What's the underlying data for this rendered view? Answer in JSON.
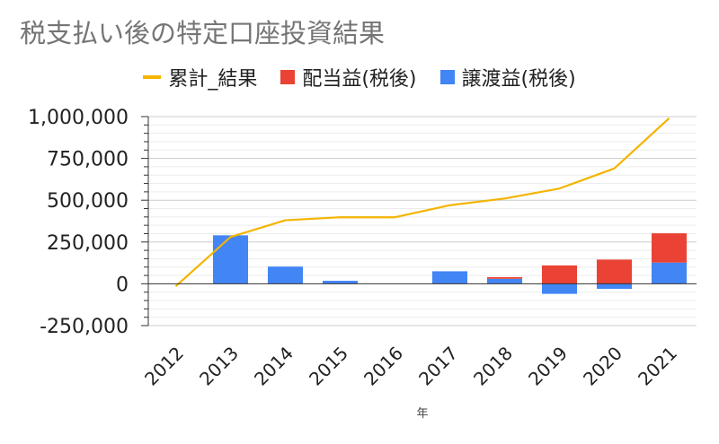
{
  "chart_data": {
    "type": "bar",
    "title": "税支払い後の特定口座投資結果",
    "xlabel": "年",
    "ylabel": "",
    "categories": [
      "2012",
      "2013",
      "2014",
      "2015",
      "2016",
      "2017",
      "2018",
      "2019",
      "2020",
      "2021"
    ],
    "ylim": [
      -250000,
      1000000
    ],
    "yticks": [
      1000000,
      750000,
      500000,
      250000,
      0,
      -250000
    ],
    "ytick_labels": [
      "1,000,000",
      "750,000",
      "500,000",
      "250,000",
      "0",
      "-250,000"
    ],
    "stacked": true,
    "grid": true,
    "legend_position": "top",
    "series": [
      {
        "name": "累計_結果",
        "kind": "line",
        "color": "#f4b400",
        "values": [
          -15000,
          280000,
          380000,
          398000,
          398000,
          470000,
          510000,
          570000,
          690000,
          990000
        ]
      },
      {
        "name": "配当益(税後)",
        "kind": "bar",
        "color": "#ea4335",
        "values": [
          0,
          0,
          0,
          0,
          0,
          0,
          10000,
          110000,
          145000,
          175000
        ]
      },
      {
        "name": "譲渡益(税後)",
        "kind": "bar",
        "color": "#4285f4",
        "values": [
          0,
          290000,
          103000,
          18000,
          0,
          75000,
          30000,
          -60000,
          -30000,
          127000
        ]
      }
    ]
  }
}
